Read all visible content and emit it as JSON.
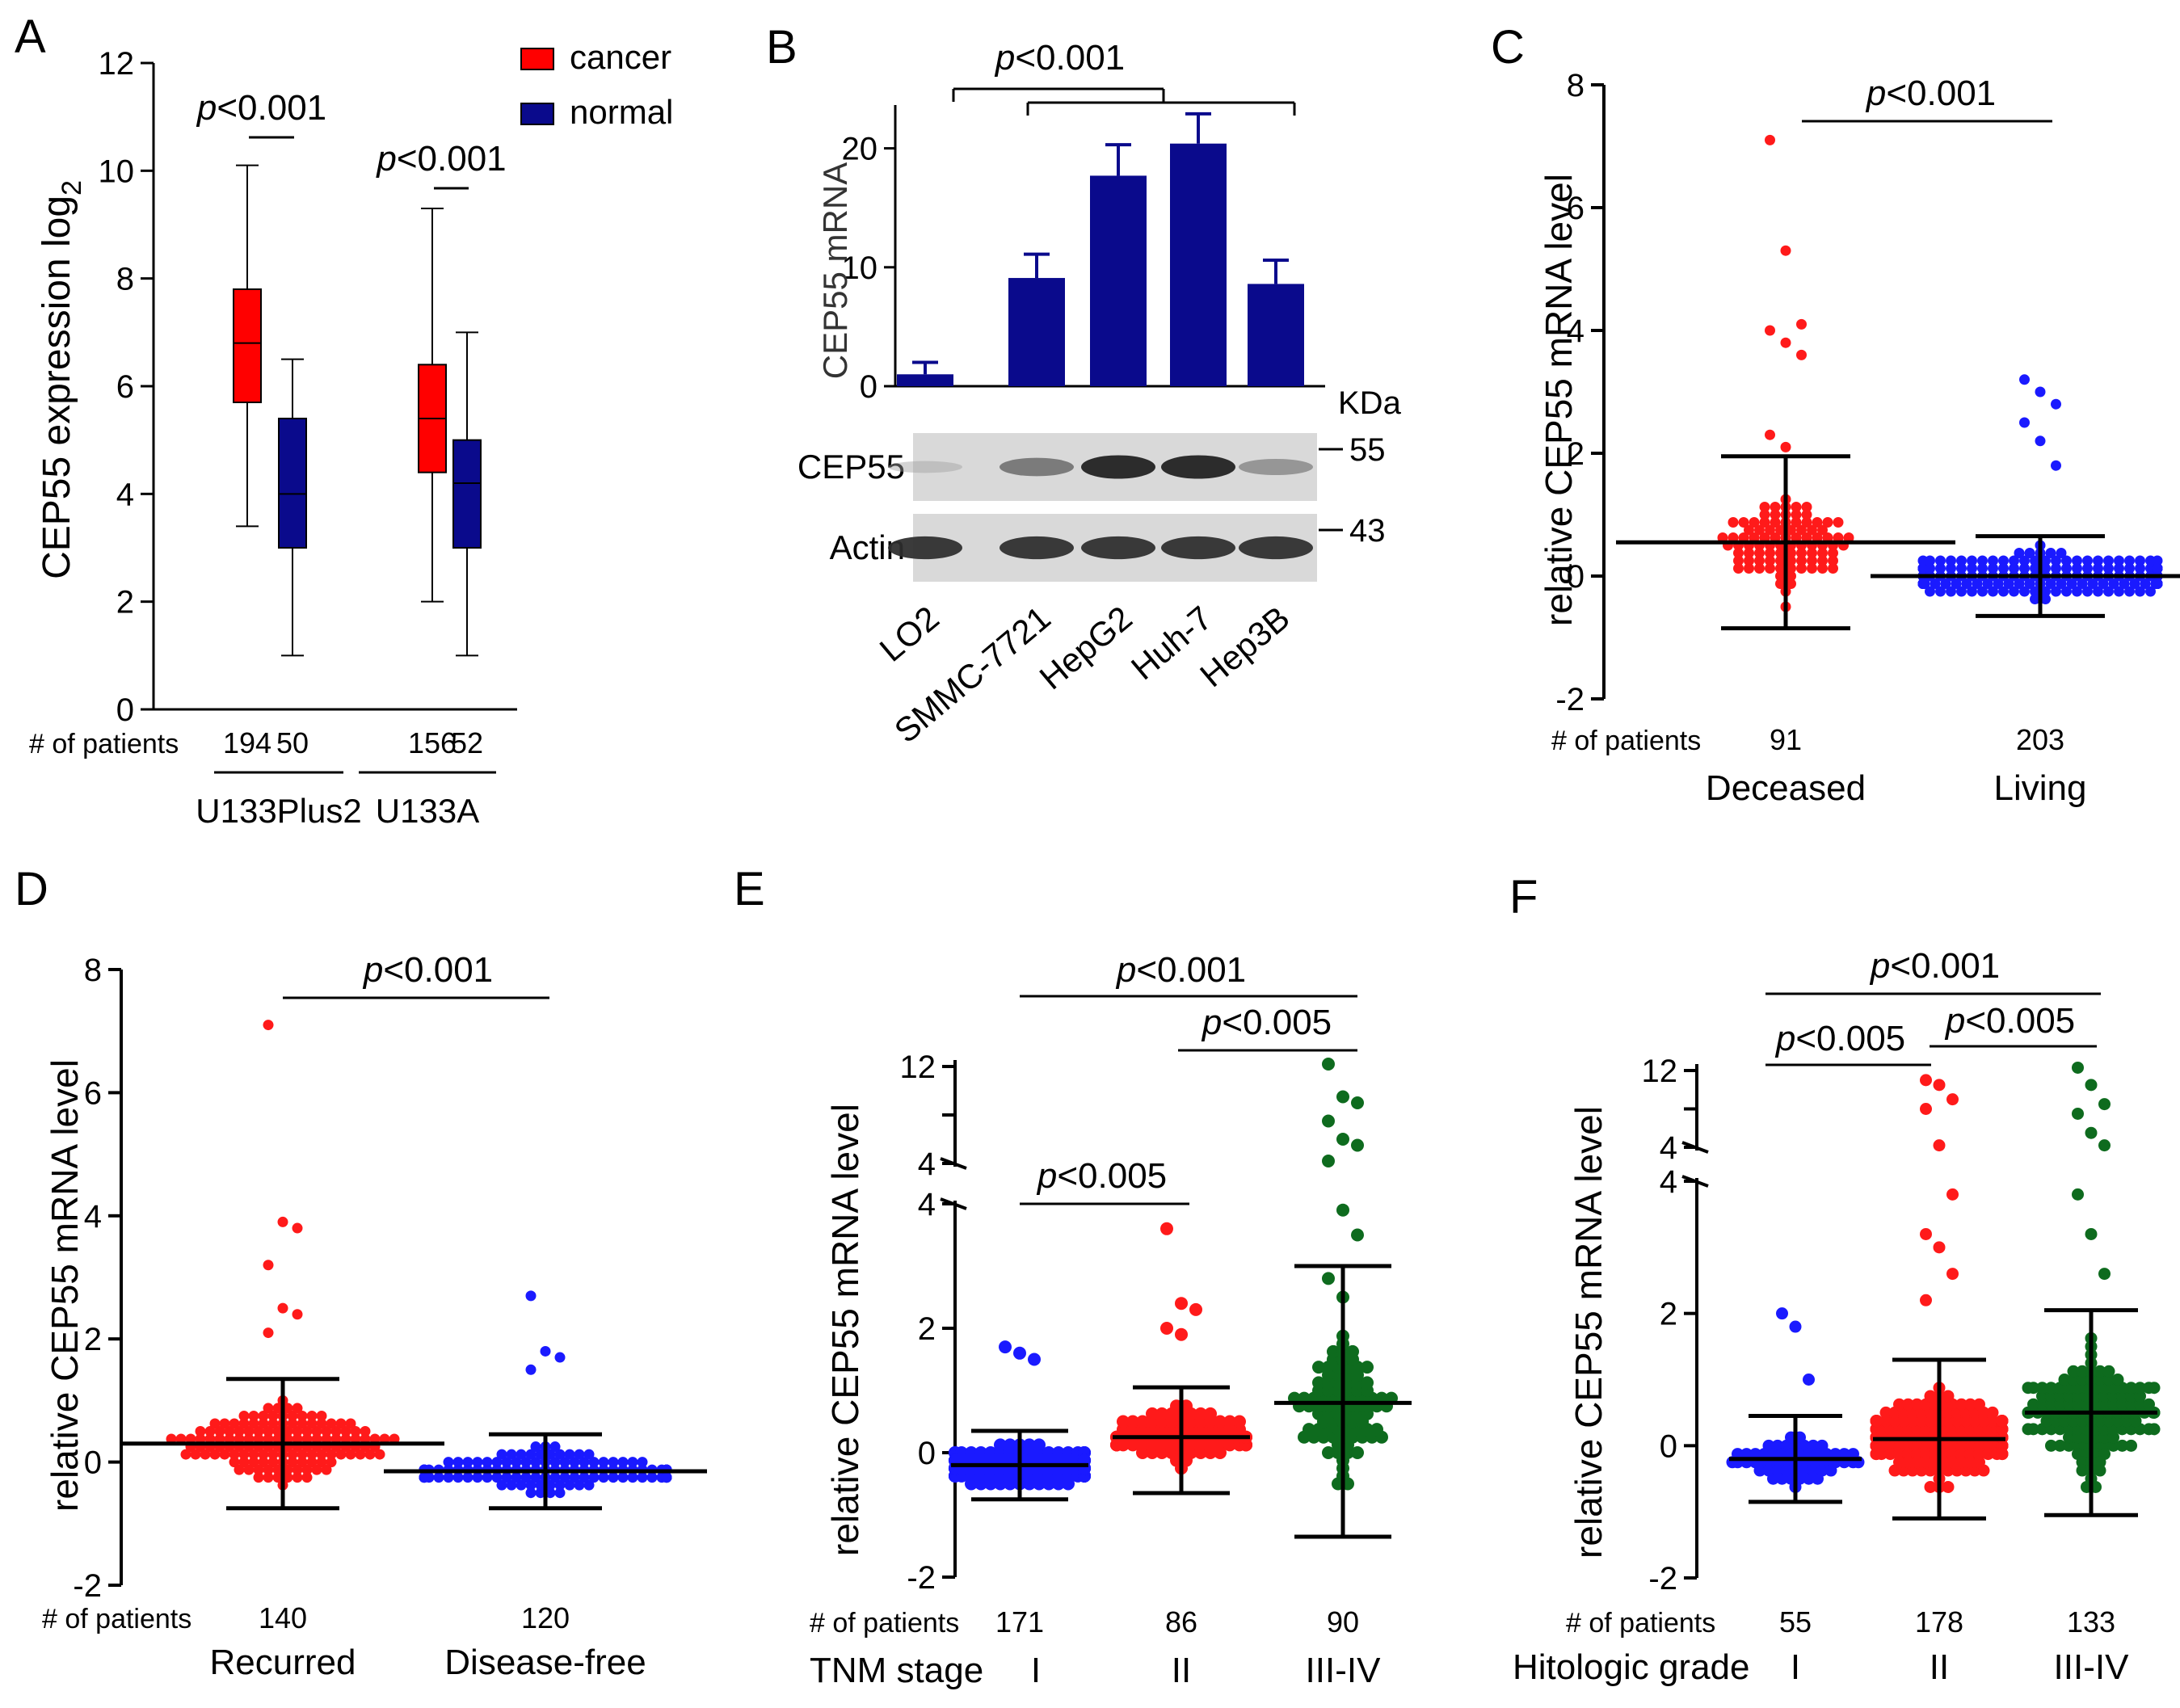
{
  "colors": {
    "cancer": "#ff0000",
    "normal": "#0a0a8c",
    "red": "#ff1a1a",
    "blue": "#1a1aff",
    "green": "#0e6b1e",
    "bar": "#0a0a8c",
    "black": "#000000"
  },
  "chart_data": [
    {
      "panel": "A",
      "type": "box",
      "ylabel": "CEP55 expression log",
      "ylabel_sub": "2",
      "ylim": [
        0,
        12
      ],
      "yticks": [
        "0",
        "2",
        "4",
        "6",
        "8",
        "10",
        "12"
      ],
      "legend": [
        "cancer",
        "normal"
      ],
      "groups": [
        {
          "name": "U133Plus2",
          "pval": "<0.001",
          "boxes": [
            {
              "series": "cancer",
              "n": "194",
              "min": 3.4,
              "q1": 5.7,
              "median": 6.8,
              "q3": 7.8,
              "max": 10.1
            },
            {
              "series": "normal",
              "n": "50",
              "min": 1.0,
              "q1": 3.0,
              "median": 4.0,
              "q3": 5.4,
              "max": 6.5
            }
          ]
        },
        {
          "name": "U133A",
          "pval": "<0.001",
          "boxes": [
            {
              "series": "cancer",
              "n": "156",
              "min": 2.0,
              "q1": 4.4,
              "median": 5.4,
              "q3": 6.4,
              "max": 9.3
            },
            {
              "series": "normal",
              "n": "52",
              "min": 1.0,
              "q1": 3.0,
              "median": 4.2,
              "q3": 5.0,
              "max": 7.0
            }
          ]
        }
      ],
      "n_label": "# of patients"
    },
    {
      "panel": "B",
      "type": "bar",
      "ylabel": "CEP55 mRNA",
      "ylim": [
        0,
        25
      ],
      "yticks": [
        "0",
        "10",
        "20"
      ],
      "categories": [
        "LO2",
        "SMMC-7721",
        "HepG2",
        "Huh-7",
        "Hep3B"
      ],
      "values": [
        1.0,
        9.1,
        17.7,
        20.4,
        8.6
      ],
      "errors": [
        1.0,
        2.0,
        2.6,
        2.5,
        2.0
      ],
      "pval": "<0.001",
      "blot": {
        "kda_label": "KDa",
        "rows": [
          {
            "name": "CEP55",
            "kda": "55",
            "intensity": [
              0.15,
              0.6,
              0.95,
              0.95,
              0.45
            ]
          },
          {
            "name": "Actin",
            "kda": "43",
            "intensity": [
              0.9,
              0.9,
              0.9,
              0.9,
              0.9
            ]
          }
        ]
      }
    },
    {
      "panel": "C",
      "type": "scatter",
      "ylabel": "relative CEP55 mRNA level",
      "ylim": [
        -2,
        8
      ],
      "yticks": [
        "-2",
        "0",
        "2",
        "4",
        "6",
        "8"
      ],
      "n_label": "# of patients",
      "pval": "<0.001",
      "groups": [
        {
          "name": "Deceased",
          "n": "91",
          "color": "red",
          "mean": 0.55,
          "sd_low": -0.85,
          "sd_high": 1.95,
          "outliers": [
            7.1,
            5.3,
            4.1,
            4.0,
            3.8,
            3.6,
            2.3,
            2.1
          ]
        },
        {
          "name": "Living",
          "n": "203",
          "color": "blue",
          "mean": 0.0,
          "sd_low": -0.65,
          "sd_high": 0.65,
          "outliers": [
            3.2,
            3.0,
            2.8,
            2.5,
            2.2,
            1.8
          ]
        }
      ]
    },
    {
      "panel": "D",
      "type": "scatter",
      "ylabel": "relative CEP55 mRNA level",
      "ylim": [
        -2,
        8
      ],
      "yticks": [
        "-2",
        "0",
        "2",
        "4",
        "6",
        "8"
      ],
      "n_label": "# of patients",
      "pval": "<0.001",
      "groups": [
        {
          "name": "Recurred",
          "n": "140",
          "color": "red",
          "mean": 0.3,
          "sd_low": -0.75,
          "sd_high": 1.35,
          "outliers": [
            7.1,
            3.9,
            3.8,
            3.2,
            2.5,
            2.4,
            2.1
          ]
        },
        {
          "name": "Disease-free",
          "n": "120",
          "color": "blue",
          "mean": -0.15,
          "sd_low": -0.75,
          "sd_high": 0.45,
          "outliers": [
            2.7,
            1.8,
            1.7,
            1.5
          ]
        }
      ]
    },
    {
      "panel": "E",
      "type": "scatter",
      "ylabel": "relative CEP55 mRNA level",
      "ylim": [
        -2,
        12
      ],
      "yticks": [
        "-2",
        "0",
        "2",
        "4",
        "4",
        "12"
      ],
      "axis_break": true,
      "n_label": "# of patients",
      "group_label": "TNM stage",
      "pvals": [
        "<0.001",
        "<0.005",
        "<0.005"
      ],
      "groups": [
        {
          "name": "I",
          "n": "171",
          "color": "blue",
          "mean": -0.2,
          "sd_low": -0.75,
          "sd_high": 0.35,
          "outliers": [
            1.7,
            1.6,
            1.5
          ]
        },
        {
          "name": "II",
          "n": "86",
          "color": "red",
          "mean": 0.25,
          "sd_low": -0.65,
          "sd_high": 1.05,
          "outliers": [
            3.6,
            2.4,
            2.3,
            2.0,
            1.9
          ]
        },
        {
          "name": "III-IV",
          "n": "90",
          "color": "green",
          "mean": 0.8,
          "sd_low": -1.35,
          "sd_high": 3.0,
          "outliers": [
            12.2,
            9.5,
            9.0,
            7.5,
            6.0,
            5.5,
            4.2,
            3.9,
            3.5,
            2.8,
            2.5
          ]
        }
      ]
    },
    {
      "panel": "F",
      "type": "scatter",
      "ylabel": "relative CEP55 mRNA level",
      "ylim": [
        -2,
        12
      ],
      "yticks": [
        "-2",
        "0",
        "2",
        "4",
        "4",
        "12"
      ],
      "axis_break": true,
      "n_label": "# of patients",
      "group_label": "Hitologic grade",
      "pvals": [
        "<0.001",
        "<0.005",
        "<0.005"
      ],
      "groups": [
        {
          "name": "I",
          "n": "55",
          "color": "blue",
          "mean": -0.2,
          "sd_low": -0.85,
          "sd_high": 0.45,
          "outliers": [
            2.0,
            1.8,
            1.0
          ]
        },
        {
          "name": "II",
          "n": "178",
          "color": "red",
          "mean": 0.1,
          "sd_low": -1.1,
          "sd_high": 1.3,
          "outliers": [
            11.0,
            10.5,
            9.0,
            8.0,
            4.2,
            3.8,
            3.2,
            3.0,
            2.6,
            2.2
          ]
        },
        {
          "name": "III-IV",
          "n": "133",
          "color": "green",
          "mean": 0.5,
          "sd_low": -1.05,
          "sd_high": 2.05,
          "outliers": [
            12.3,
            10.5,
            8.5,
            7.5,
            5.5,
            4.2,
            3.8,
            3.2,
            2.6
          ]
        }
      ]
    }
  ]
}
